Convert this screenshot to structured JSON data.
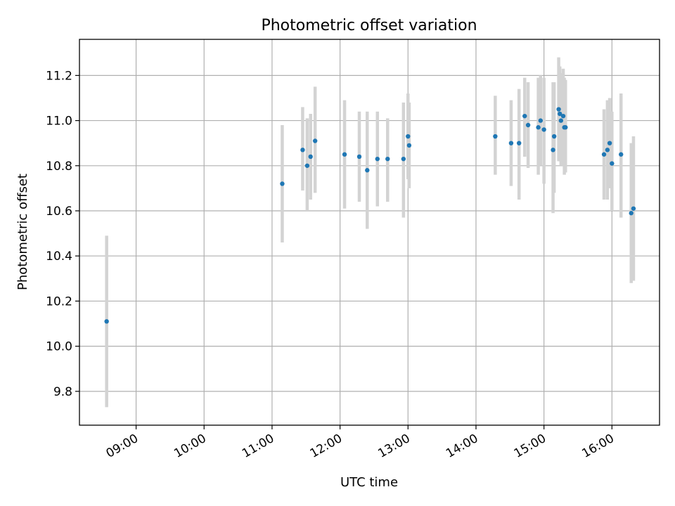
{
  "chart_data": {
    "type": "scatter",
    "title": "Photometric offset variation",
    "xlabel": "UTC time",
    "ylabel": "Photometric offset",
    "x_unit": "UTC time (HH:MM)",
    "xlim": [
      "08:10",
      "16:42"
    ],
    "ylim": [
      9.65,
      11.36
    ],
    "xticks": [
      "09:00",
      "10:00",
      "11:00",
      "12:00",
      "13:00",
      "14:00",
      "15:00",
      "16:00"
    ],
    "yticks": [
      "9.8",
      "10.0",
      "10.2",
      "10.4",
      "10.6",
      "10.8",
      "11.0",
      "11.2"
    ],
    "grid": true,
    "point_color": "#1f77b4",
    "errorbar_color": "#d3d3d3",
    "series": [
      {
        "points": [
          {
            "x": "08:34",
            "y": 10.11,
            "ylo": 9.73,
            "yhi": 10.49
          },
          {
            "x": "11:09",
            "y": 10.72,
            "ylo": 10.46,
            "yhi": 10.98
          },
          {
            "x": "11:27",
            "y": 10.87,
            "ylo": 10.69,
            "yhi": 11.06
          },
          {
            "x": "11:31",
            "y": 10.8,
            "ylo": 10.6,
            "yhi": 11.01
          },
          {
            "x": "11:34",
            "y": 10.84,
            "ylo": 10.65,
            "yhi": 11.03
          },
          {
            "x": "11:38",
            "y": 10.91,
            "ylo": 10.68,
            "yhi": 11.15
          },
          {
            "x": "12:04",
            "y": 10.85,
            "ylo": 10.61,
            "yhi": 11.09
          },
          {
            "x": "12:17",
            "y": 10.84,
            "ylo": 10.64,
            "yhi": 11.04
          },
          {
            "x": "12:24",
            "y": 10.78,
            "ylo": 10.52,
            "yhi": 11.04
          },
          {
            "x": "12:33",
            "y": 10.83,
            "ylo": 10.62,
            "yhi": 11.04
          },
          {
            "x": "12:42",
            "y": 10.83,
            "ylo": 10.64,
            "yhi": 11.01
          },
          {
            "x": "12:56",
            "y": 10.83,
            "ylo": 10.57,
            "yhi": 11.08
          },
          {
            "x": "13:00",
            "y": 10.93,
            "ylo": 10.74,
            "yhi": 11.12
          },
          {
            "x": "13:01",
            "y": 10.89,
            "ylo": 10.7,
            "yhi": 11.08
          },
          {
            "x": "14:17",
            "y": 10.93,
            "ylo": 10.76,
            "yhi": 11.11
          },
          {
            "x": "14:31",
            "y": 10.9,
            "ylo": 10.71,
            "yhi": 11.09
          },
          {
            "x": "14:38",
            "y": 10.9,
            "ylo": 10.65,
            "yhi": 11.14
          },
          {
            "x": "14:43",
            "y": 11.02,
            "ylo": 10.84,
            "yhi": 11.19
          },
          {
            "x": "14:46",
            "y": 10.98,
            "ylo": 10.79,
            "yhi": 11.17
          },
          {
            "x": "14:55",
            "y": 10.97,
            "ylo": 10.76,
            "yhi": 11.19
          },
          {
            "x": "14:57",
            "y": 11.0,
            "ylo": 10.8,
            "yhi": 11.2
          },
          {
            "x": "15:00",
            "y": 10.96,
            "ylo": 10.72,
            "yhi": 11.19
          },
          {
            "x": "15:08",
            "y": 10.87,
            "ylo": 10.59,
            "yhi": 11.17
          },
          {
            "x": "15:09",
            "y": 10.93,
            "ylo": 10.68,
            "yhi": 11.17
          },
          {
            "x": "15:13",
            "y": 11.05,
            "ylo": 10.82,
            "yhi": 11.28
          },
          {
            "x": "15:14",
            "y": 11.03,
            "ylo": 10.82,
            "yhi": 11.24
          },
          {
            "x": "15:15",
            "y": 11.0,
            "ylo": 10.8,
            "yhi": 11.21
          },
          {
            "x": "15:17",
            "y": 11.02,
            "ylo": 10.8,
            "yhi": 11.23
          },
          {
            "x": "15:18",
            "y": 10.97,
            "ylo": 10.76,
            "yhi": 11.19
          },
          {
            "x": "15:19",
            "y": 10.97,
            "ylo": 10.77,
            "yhi": 11.18
          },
          {
            "x": "15:53",
            "y": 10.85,
            "ylo": 10.65,
            "yhi": 11.05
          },
          {
            "x": "15:56",
            "y": 10.87,
            "ylo": 10.65,
            "yhi": 11.09
          },
          {
            "x": "15:58",
            "y": 10.9,
            "ylo": 10.7,
            "yhi": 11.1
          },
          {
            "x": "16:00",
            "y": 10.81,
            "ylo": 10.6,
            "yhi": 11.04
          },
          {
            "x": "16:08",
            "y": 10.85,
            "ylo": 10.57,
            "yhi": 11.12
          },
          {
            "x": "16:17",
            "y": 10.59,
            "ylo": 10.28,
            "yhi": 10.9
          },
          {
            "x": "16:19",
            "y": 10.61,
            "ylo": 10.29,
            "yhi": 10.93
          }
        ]
      }
    ]
  }
}
